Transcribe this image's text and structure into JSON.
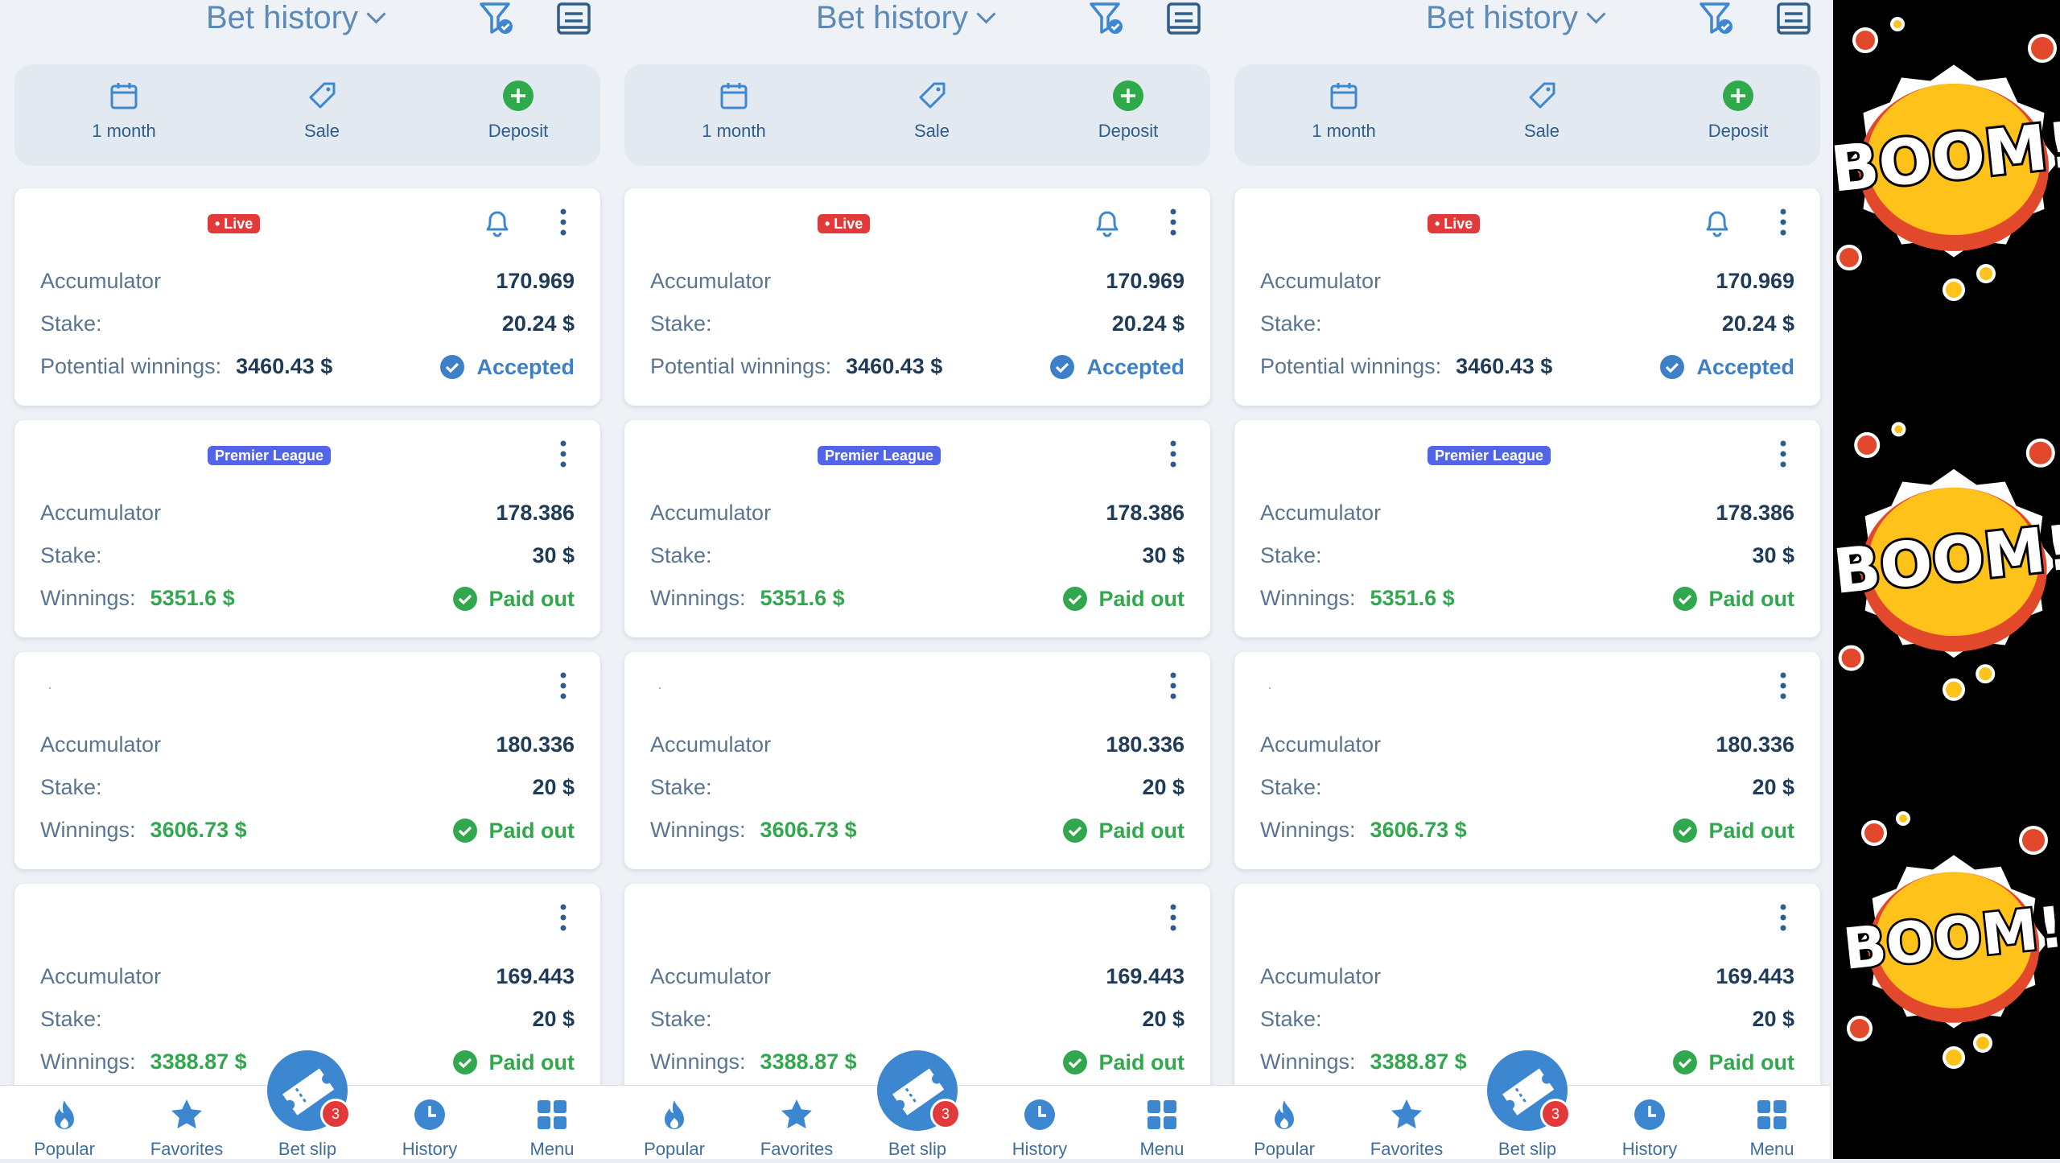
{
  "header": {
    "title": "Bet history"
  },
  "filters": [
    {
      "label": "1 month",
      "icon": "calendar-icon"
    },
    {
      "label": "Sale",
      "icon": "tag-icon"
    },
    {
      "label": "Deposit",
      "icon": "plus-circle-icon"
    }
  ],
  "bets": [
    {
      "badge": "• Live",
      "badge_type": "live",
      "bell": true,
      "type": "Accumulator",
      "odds": "170.969",
      "stake_label": "Stake:",
      "stake": "20.24 $",
      "result_label": "Potential winnings:",
      "result_value": "3460.43 $",
      "status": "Accepted"
    },
    {
      "badge": "Premier League",
      "badge_type": "league",
      "bell": false,
      "type": "Accumulator",
      "odds": "178.386",
      "stake_label": "Stake:",
      "stake": "30 $",
      "result_label": "Winnings:",
      "result_value": "5351.6 $",
      "status": "Paid out"
    },
    {
      "badge": "·",
      "badge_type": "empty",
      "bell": false,
      "type": "Accumulator",
      "odds": "180.336",
      "stake_label": "Stake:",
      "stake": "20 $",
      "result_label": "Winnings:",
      "result_value": "3606.73 $",
      "status": "Paid out"
    },
    {
      "badge": "",
      "badge_type": "empty",
      "bell": false,
      "type": "Accumulator",
      "odds": "169.443",
      "stake_label": "Stake:",
      "stake": "20 $",
      "result_label": "Winnings:",
      "result_value": "3388.87 $",
      "status": "Paid out"
    }
  ],
  "nav": [
    {
      "label": "Popular",
      "icon": "flame-icon"
    },
    {
      "label": "Favorites",
      "icon": "star-icon"
    },
    {
      "label": "Bet slip",
      "icon": "ticket-icon",
      "badge": "3"
    },
    {
      "label": "History",
      "icon": "clock-icon"
    },
    {
      "label": "Menu",
      "icon": "grid-icon"
    }
  ],
  "ad": {
    "text": "BOOM!"
  },
  "colors": {
    "accent": "#3d86d0",
    "live": "#e23a3a",
    "league": "#5265e8",
    "paid": "#32a84e",
    "accepted": "#3d80c8"
  }
}
